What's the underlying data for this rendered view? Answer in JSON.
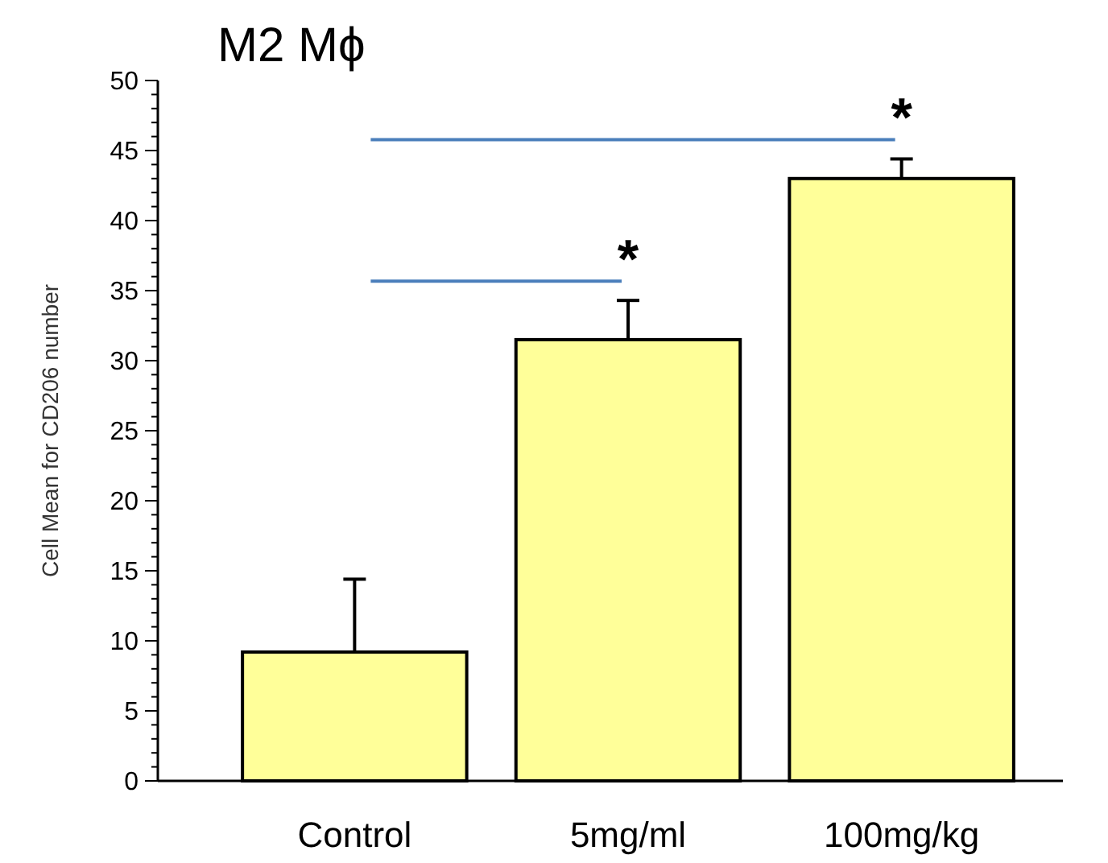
{
  "chart_data": {
    "type": "bar",
    "title": "M2 Mϕ",
    "ylabel": "Cell Mean for CD206 number",
    "categories": [
      "Control",
      "5mg/ml",
      "100mg/kg"
    ],
    "values": [
      9.2,
      31.5,
      43.0
    ],
    "errors": [
      [
        9.2,
        14.4
      ],
      [
        31.5,
        34.3
      ],
      [
        43.0,
        44.4
      ]
    ],
    "color": "#ffff99",
    "ylim": [
      0,
      50
    ],
    "yticks": [
      0,
      5,
      10,
      15,
      20,
      25,
      30,
      35,
      40,
      45,
      50
    ],
    "grid": false,
    "annotations": [
      "*",
      "*"
    ]
  }
}
